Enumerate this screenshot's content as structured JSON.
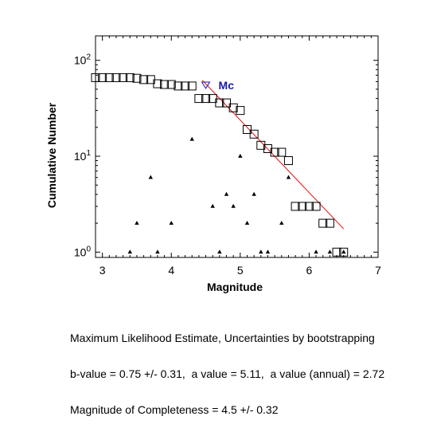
{
  "chart_data": {
    "type": "scatter",
    "xlabel": "Magnitude",
    "ylabel": "Cumulative Number",
    "xlim": [
      2.9,
      7
    ],
    "ylim": [
      0.88,
      180
    ],
    "yscale": "log",
    "x_ticks": [
      3,
      4,
      5,
      6,
      7
    ],
    "y_ticks": [
      {
        "value": 1,
        "base": "10",
        "exp": "0"
      },
      {
        "value": 10,
        "base": "10",
        "exp": "1"
      },
      {
        "value": 100,
        "base": "10",
        "exp": "2"
      }
    ],
    "series": [
      {
        "marker": "square",
        "color": "#000000",
        "x": [
          2.9,
          3.0,
          3.1,
          3.2,
          3.3,
          3.4,
          3.5,
          3.6,
          3.7,
          3.8,
          3.9,
          4.0,
          4.1,
          4.2,
          4.3,
          4.4,
          4.5,
          4.6,
          4.7,
          4.8,
          4.9,
          5.0,
          5.1,
          5.2,
          5.3,
          5.4,
          5.5,
          5.6,
          5.7,
          5.8,
          5.9,
          6.0,
          6.1,
          6.2,
          6.3,
          6.4,
          6.5
        ],
        "y": [
          66,
          66,
          66,
          66,
          66,
          66,
          65,
          63,
          63,
          57,
          56,
          56,
          54,
          54,
          54,
          40,
          40,
          40,
          36,
          36,
          32,
          30,
          19,
          17,
          13,
          12,
          11,
          11,
          9,
          3,
          3,
          3,
          3,
          2,
          2,
          1,
          1
        ]
      },
      {
        "marker": "triangle",
        "color": "#000000",
        "x": [
          3.4,
          3.5,
          3.7,
          3.8,
          4.0,
          4.3,
          4.6,
          4.7,
          4.8,
          4.9,
          5.0,
          5.1,
          5.2,
          5.3,
          5.4,
          5.6,
          5.7,
          6.1,
          6.3,
          6.5
        ],
        "y": [
          1,
          2,
          6,
          1,
          2,
          15,
          3,
          1,
          4,
          3,
          10,
          2,
          4,
          1,
          1,
          2,
          6,
          1,
          1,
          1
        ]
      }
    ],
    "fit_line": {
      "color": "#e01010",
      "x": [
        4.45,
        6.5
      ],
      "y": [
        62,
        1.75
      ]
    },
    "mc_marker": {
      "x": 4.5,
      "y": 55,
      "label": "Mc",
      "color": "#1a1aa8"
    }
  },
  "caption": {
    "line1": "Maximum Likelihood Estimate, Uncertainties by bootstrapping",
    "line2": "b-value = 0.75 +/- 0.31,  a value = 5.11,  a value (annual) = 2.72",
    "line3": "Magnitude of Completeness = 4.5 +/- 0.32"
  }
}
